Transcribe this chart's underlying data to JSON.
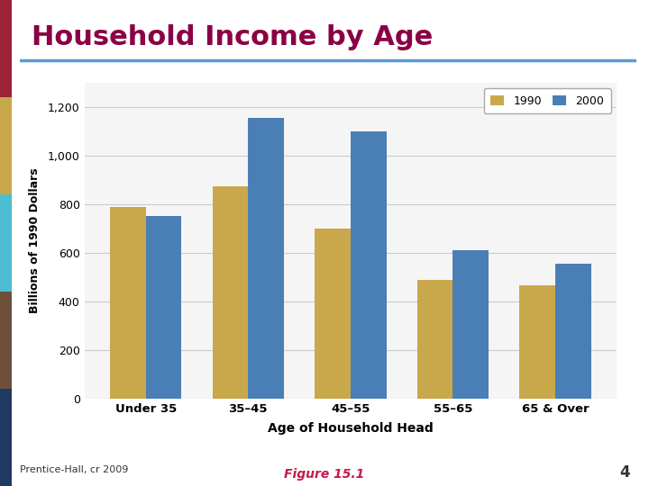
{
  "title": "Household Income by Age",
  "title_color": "#8B0045",
  "title_fontsize": 22,
  "categories": [
    "Under 35",
    "35–45",
    "45–55",
    "55–65",
    "65 & Over"
  ],
  "values_1990": [
    790,
    875,
    700,
    490,
    465
  ],
  "values_2000": [
    750,
    1155,
    1100,
    610,
    555
  ],
  "color_1990": "#C9A84C",
  "color_2000": "#4A7FB5",
  "ylabel": "Billions of 1990 Dollars",
  "xlabel": "Age of Household Head",
  "ylim": [
    0,
    1300
  ],
  "yticks": [
    0,
    200,
    400,
    600,
    800,
    1000,
    1200
  ],
  "ytick_labels": [
    "0",
    "200",
    "400",
    "600",
    "800",
    "1,000",
    "1,200"
  ],
  "legend_labels": [
    "1990",
    "2000"
  ],
  "footer_left": "Prentice-Hall, cr 2009",
  "footer_center": "Figure 15.1",
  "footer_number": "4",
  "chart_bg": "#f5f5f5",
  "outer_bg": "#ffffff",
  "bar_width": 0.35,
  "grid_color": "#cccccc",
  "horizontal_rule_color": "#5B9BD5",
  "left_stripe_colors": [
    "#1F3864",
    "#6D4F3A",
    "#4DBDD4",
    "#C9A84C",
    "#9B2335"
  ]
}
